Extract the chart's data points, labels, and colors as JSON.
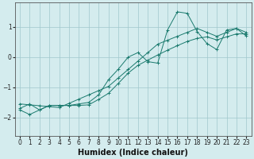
{
  "xlabel": "Humidex (Indice chaleur)",
  "bg_color": "#d4ecee",
  "grid_color": "#9fc8cc",
  "line_color": "#1a7a6e",
  "xlim": [
    -0.5,
    23.5
  ],
  "ylim": [
    -2.6,
    1.8
  ],
  "yticks": [
    -2,
    -1,
    0,
    1
  ],
  "xticks": [
    0,
    1,
    2,
    3,
    4,
    5,
    6,
    7,
    8,
    9,
    10,
    11,
    12,
    13,
    14,
    15,
    16,
    17,
    18,
    19,
    20,
    21,
    22,
    23
  ],
  "line1_x": [
    0,
    1,
    2,
    3,
    4,
    5,
    6,
    7,
    8,
    9,
    10,
    11,
    12,
    13,
    14,
    15,
    16,
    17,
    18,
    19,
    20,
    21,
    22,
    23
  ],
  "line1_y": [
    -1.7,
    -1.55,
    -1.75,
    -1.6,
    -1.6,
    -1.6,
    -1.6,
    -1.58,
    -1.4,
    -1.2,
    -0.87,
    -0.53,
    -0.27,
    -0.1,
    0.07,
    0.23,
    0.38,
    0.52,
    0.62,
    0.67,
    0.57,
    0.67,
    0.77,
    0.77
  ],
  "line2_x": [
    0,
    1,
    2,
    3,
    4,
    5,
    6,
    7,
    8,
    9,
    10,
    11,
    12,
    13,
    14,
    15,
    16,
    17,
    18,
    19,
    20,
    21,
    22,
    23
  ],
  "line2_y": [
    -1.55,
    -1.58,
    -1.61,
    -1.64,
    -1.67,
    -1.53,
    -1.39,
    -1.25,
    -1.11,
    -0.97,
    -0.69,
    -0.41,
    -0.13,
    0.15,
    0.43,
    0.56,
    0.69,
    0.82,
    0.95,
    0.82,
    0.69,
    0.82,
    0.95,
    0.82
  ],
  "line3_x": [
    0,
    1,
    2,
    3,
    4,
    5,
    6,
    7,
    8,
    9,
    10,
    11,
    12,
    13,
    14,
    15,
    16,
    17,
    18,
    19,
    20,
    21,
    22,
    23
  ],
  "line3_y": [
    -1.75,
    -1.9,
    -1.75,
    -1.6,
    -1.6,
    -1.6,
    -1.55,
    -1.5,
    -1.25,
    -0.75,
    -0.4,
    0.0,
    0.15,
    -0.15,
    -0.2,
    0.9,
    1.5,
    1.45,
    0.85,
    0.45,
    0.25,
    0.9,
    0.95,
    0.7
  ],
  "xlabel_fontsize": 7,
  "tick_fontsize": 5.5
}
